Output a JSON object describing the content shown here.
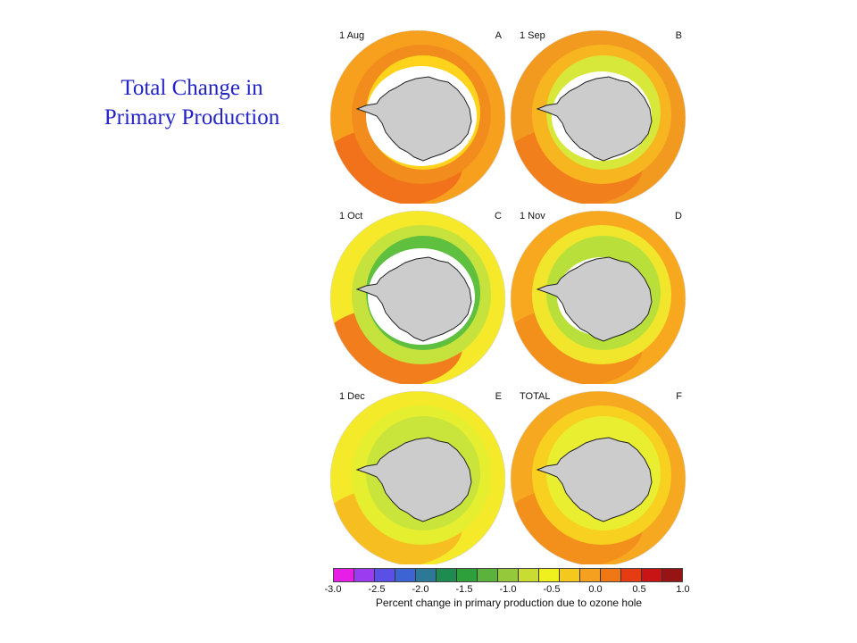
{
  "title": {
    "line1": "Total Change in",
    "line2": "Primary Production"
  },
  "panels": [
    {
      "date": "1 Aug",
      "letter": "A",
      "outer": "#f7a01e",
      "mid": "#f28c1c",
      "inner": "#ffd21c",
      "accent": "#f06a1a",
      "ice": 0.58
    },
    {
      "date": "1 Sep",
      "letter": "B",
      "outer": "#f29a20",
      "mid": "#f7b620",
      "inner": "#d8e83a",
      "accent": "#f07a1c",
      "ice": 0.52
    },
    {
      "date": "1 Oct",
      "letter": "C",
      "outer": "#f5e92a",
      "mid": "#c6e23c",
      "inner": "#5fbf3f",
      "accent": "#f06a1a",
      "ice": 0.56
    },
    {
      "date": "1 Nov",
      "letter": "D",
      "outer": "#f7a81e",
      "mid": "#f2e62c",
      "inner": "#b9e03a",
      "accent": "#f28c1c",
      "ice": 0.46
    },
    {
      "date": "1 Dec",
      "letter": "E",
      "outer": "#f5ea2a",
      "mid": "#e6ee30",
      "inner": "#c9e43a",
      "accent": "#f7b620",
      "ice": 0.4
    },
    {
      "date": "TOTAL",
      "letter": "F",
      "outer": "#f5a820",
      "mid": "#f7d020",
      "inner": "#e9ee30",
      "accent": "#f28c1c",
      "ice": 0.4
    }
  ],
  "colorbar": {
    "colors": [
      "#e61ee6",
      "#9b3cf0",
      "#5a50e6",
      "#3c64d2",
      "#2d7896",
      "#1e8c50",
      "#2da03c",
      "#5ab43c",
      "#96c83c",
      "#c8dc32",
      "#f0f01e",
      "#f5c81e",
      "#f5a01e",
      "#f07814",
      "#e63c14",
      "#c81414",
      "#961414"
    ],
    "ticks": [
      "-3.0",
      "-2.5",
      "-2.0",
      "-1.5",
      "-1.0",
      "-0.5",
      "0.0",
      "0.5",
      "1.0"
    ],
    "label": "Percent change in primary production due to ozone hole"
  },
  "colors": {
    "title": "#2323c8",
    "land": "#cccccc",
    "ice": "#ffffff"
  }
}
